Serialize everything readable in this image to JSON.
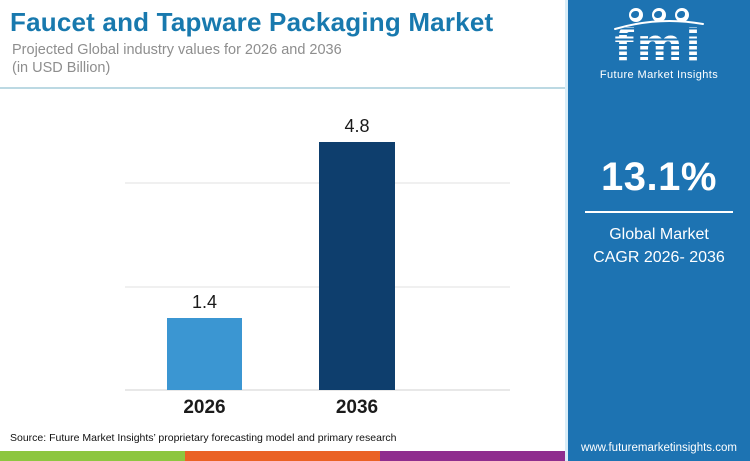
{
  "header": {
    "title": "Faucet and Tapware Packaging Market",
    "subtitle_line1": "Projected Global industry values for 2026 and 2036",
    "subtitle_line2": "(in USD Billion)"
  },
  "chart_data": {
    "type": "bar",
    "title": "Faucet and Tapware Packaging Market",
    "subtitle": "Projected Global industry values for 2026 and 2036 (in USD Billion)",
    "categories": [
      "2026",
      "2036"
    ],
    "values": [
      1.4,
      4.8
    ],
    "unit": "USD Billion",
    "ylim": [
      0,
      5
    ],
    "gridline_values": [
      0,
      2,
      4
    ],
    "bar_colors": [
      "#3b96d2",
      "#0e3e6d"
    ],
    "grid": "faint horizontal gridlines, no axis labels",
    "legend": "none",
    "value_labels": "above bars"
  },
  "sidebar": {
    "background": "#1d73b2",
    "logo": {
      "wordmark": "fmi",
      "subtext": "Future Market Insights",
      "icons": [
        "globe-americas-icon",
        "globe-europe-icon",
        "globe-asia-icon"
      ]
    },
    "cagr_value": "13.1%",
    "cagr_label_line1": "Global Market",
    "cagr_label_line2": "CAGR 2026- 2036",
    "website": "www.futuremarketinsights.com"
  },
  "footer": {
    "source": "Source: Future Market Insights’ proprietary forecasting model and primary research",
    "strip_colors": [
      "#8dc63f",
      "#ea6225",
      "#8f2d8e"
    ]
  }
}
